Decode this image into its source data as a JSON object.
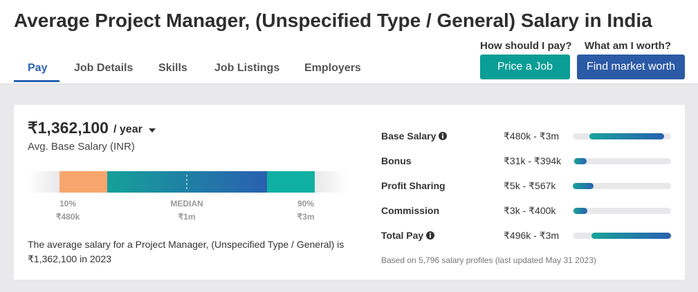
{
  "header": {
    "title": "Average Project Manager, (Unspecified Type / General) Salary in India",
    "tabs": [
      "Pay",
      "Job Details",
      "Skills",
      "Job Listings",
      "Employers"
    ],
    "cta": [
      {
        "question": "How should I pay?",
        "button": "Price a Job"
      },
      {
        "question": "What am I worth?",
        "button": "Find market worth"
      }
    ]
  },
  "summary": {
    "salary": "₹1,362,100",
    "period": "/ year",
    "caption": "Avg. Base Salary (INR)",
    "range": {
      "low_label": "10%",
      "low_value": "₹480k",
      "median_label": "MEDIAN",
      "median_value": "₹1m",
      "high_label": "90%",
      "high_value": "₹3m"
    },
    "description": "The average salary for a Project Manager, (Unspecified Type / General) is ₹1,362,100 in 2023"
  },
  "pay_breakdown": {
    "rows": [
      {
        "label": "Base Salary",
        "range": "₹480k - ₹3m"
      },
      {
        "label": "Bonus",
        "range": "₹31k - ₹394k"
      },
      {
        "label": "Profit Sharing",
        "range": "₹5k - ₹567k"
      },
      {
        "label": "Commission",
        "range": "₹3k - ₹400k"
      },
      {
        "label": "Total Pay",
        "range": "₹496k - ₹3m"
      }
    ],
    "footnote": "Based on 5,796 salary profiles (last updated May 31 2023)"
  }
}
